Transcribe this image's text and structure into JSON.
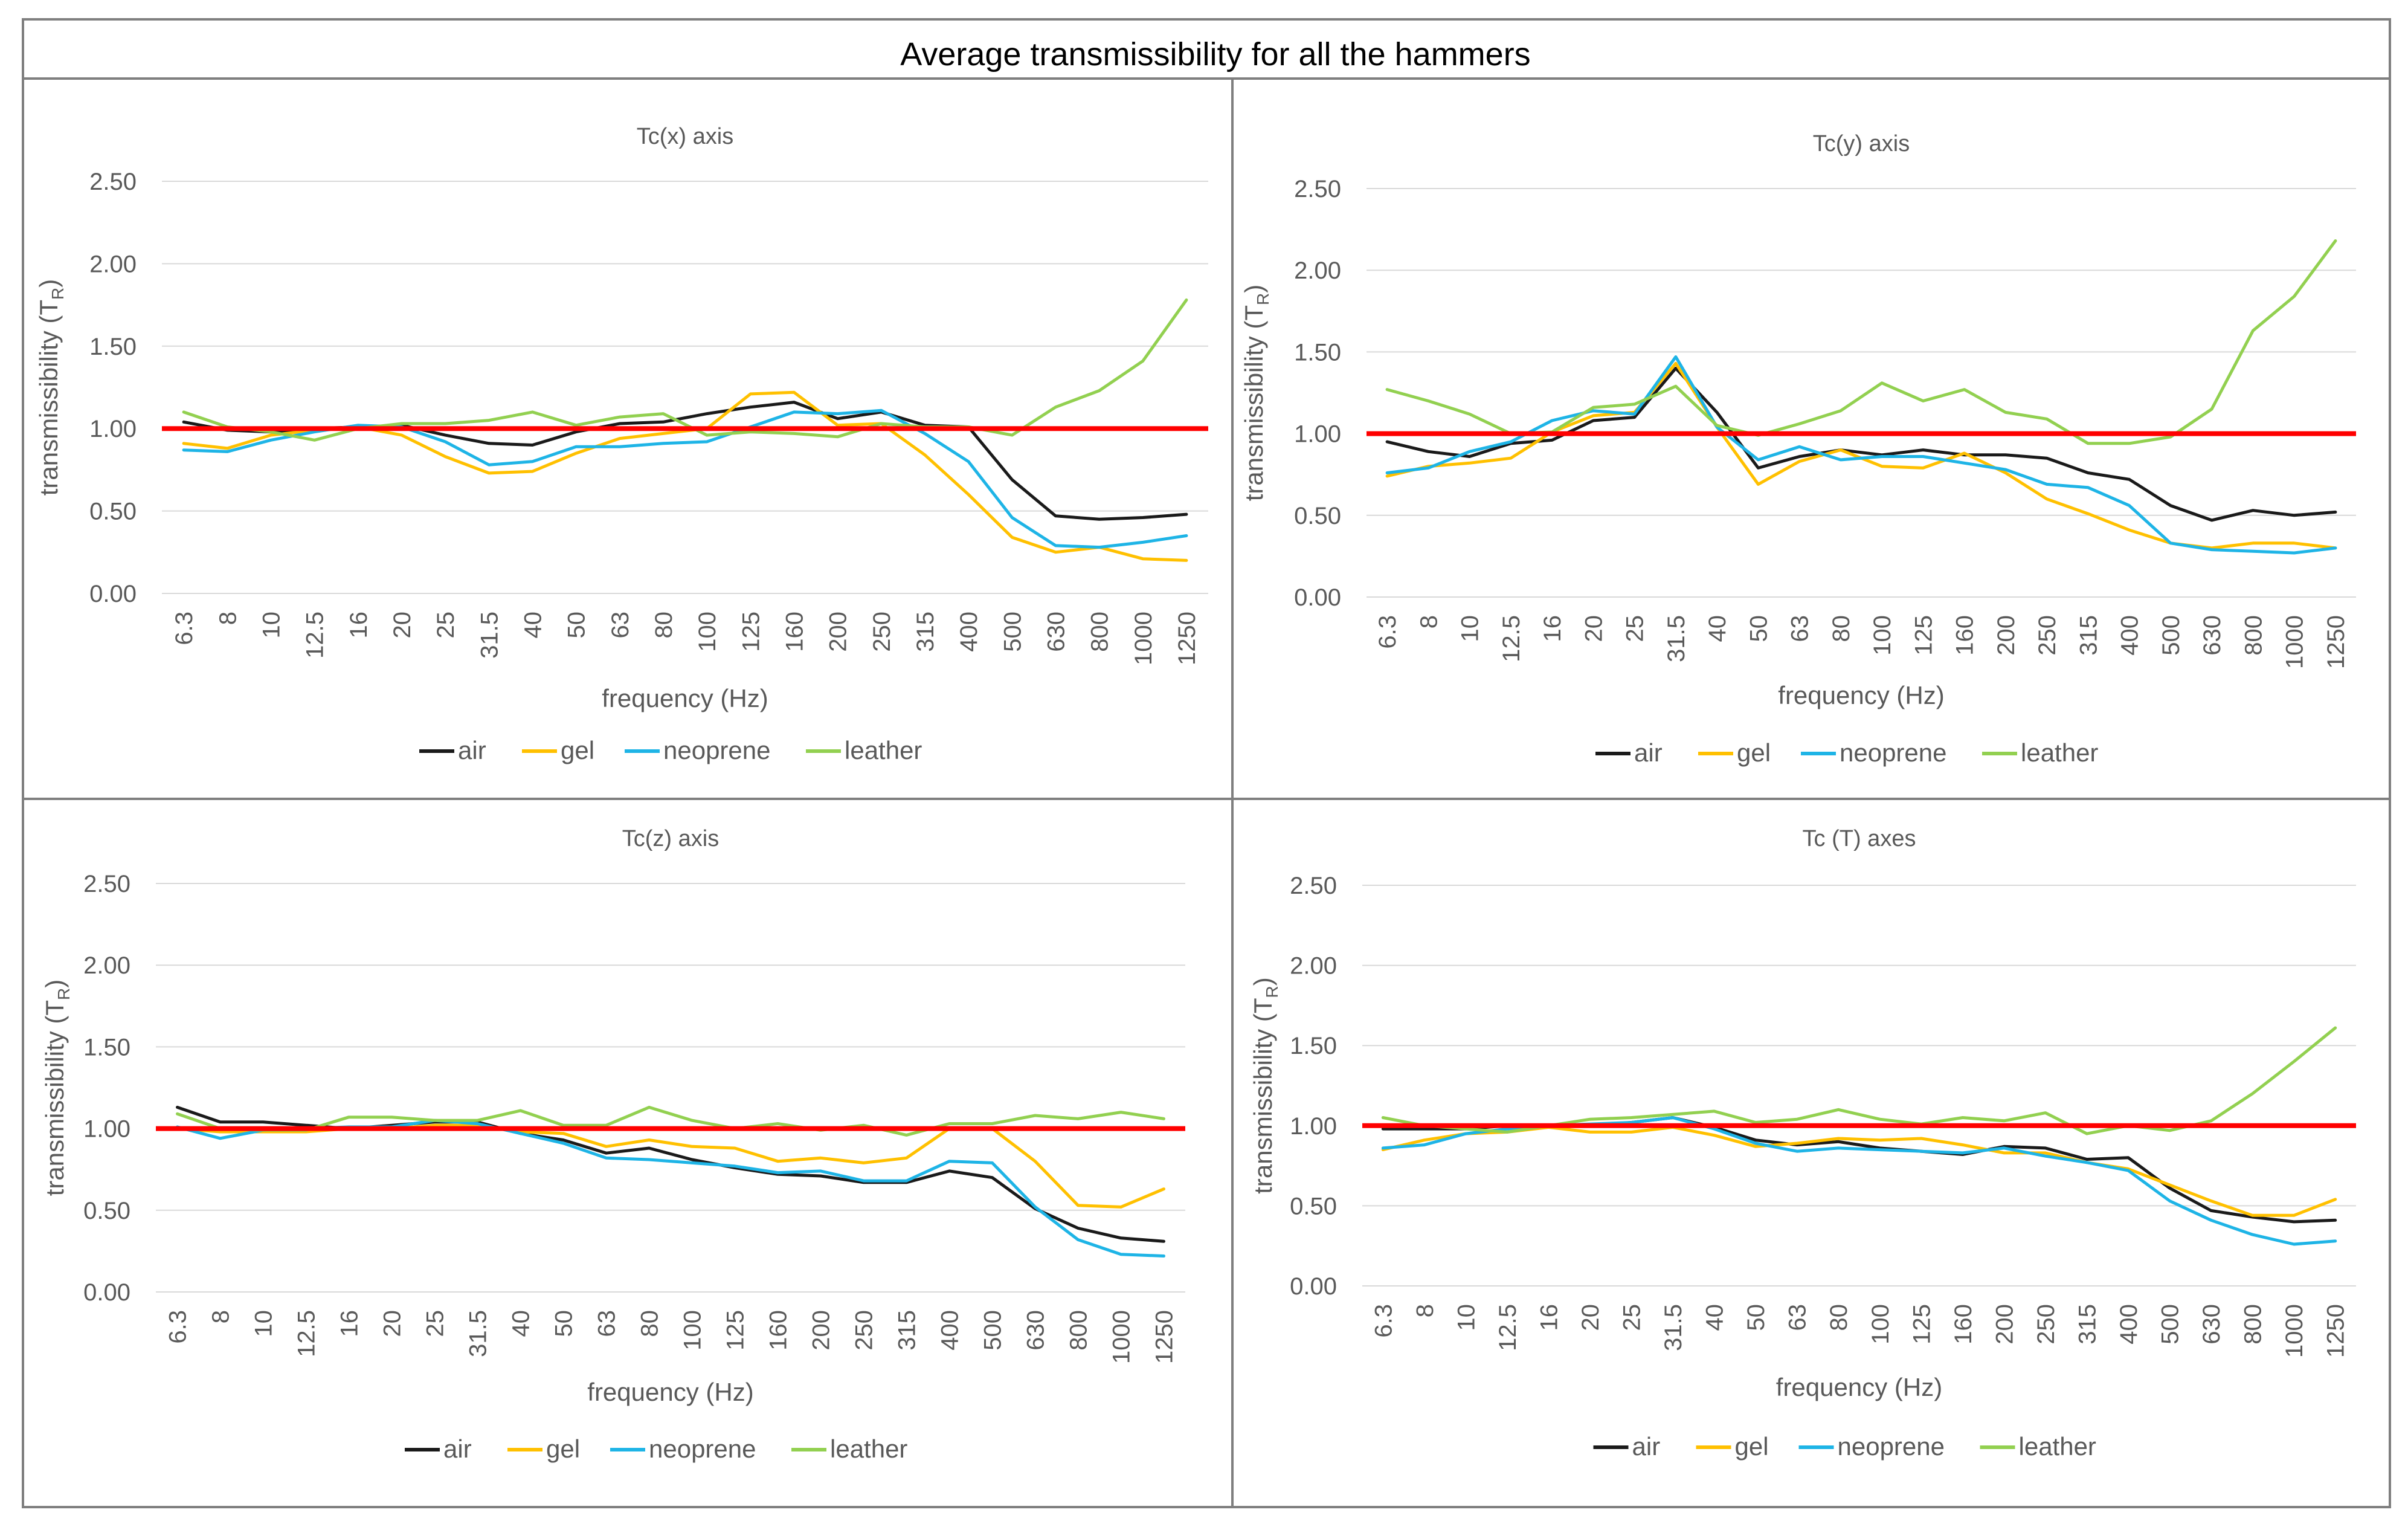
{
  "figure_title": "Average transmissibility for all the hammers",
  "colors": {
    "air": "#1a1a1a",
    "gel": "#FFC000",
    "neoprene": "#1EB4E6",
    "leather": "#92D050",
    "reference": "#FF0000",
    "grid": "#D9D9D9",
    "axis_text": "#595959",
    "border": "#7F7F7F"
  },
  "chart_data": [
    {
      "type": "line",
      "title": "Tc(x) axis",
      "xlabel": "frequency (Hz)",
      "ylabel_main": "transmissibility (T",
      "ylabel_sub": "R",
      "ylabel_end": ")",
      "ylim": [
        0,
        2.5
      ],
      "yticks": [
        "0.00",
        "0.50",
        "1.00",
        "1.50",
        "2.00",
        "2.50"
      ],
      "reference_line": 1.0,
      "categories": [
        "6.3",
        "8",
        "10",
        "12.5",
        "16",
        "20",
        "25",
        "31.5",
        "40",
        "50",
        "63",
        "80",
        "100",
        "125",
        "160",
        "200",
        "250",
        "315",
        "400",
        "500",
        "630",
        "800",
        "1000",
        "1250"
      ],
      "series": [
        {
          "name": "air",
          "values": [
            1.04,
            0.99,
            0.98,
            1.0,
            1.01,
            1.02,
            0.96,
            0.91,
            0.9,
            0.98,
            1.03,
            1.04,
            1.09,
            1.13,
            1.16,
            1.06,
            1.1,
            1.02,
            1.01,
            0.69,
            0.47,
            0.45,
            0.46,
            0.48
          ]
        },
        {
          "name": "gel",
          "values": [
            0.91,
            0.88,
            0.96,
            0.99,
            1.01,
            0.96,
            0.83,
            0.73,
            0.74,
            0.85,
            0.94,
            0.97,
            1.0,
            1.21,
            1.22,
            1.02,
            1.03,
            0.84,
            0.6,
            0.34,
            0.25,
            0.28,
            0.21,
            0.2
          ]
        },
        {
          "name": "neoprene",
          "values": [
            0.87,
            0.86,
            0.93,
            0.98,
            1.02,
            1.01,
            0.92,
            0.78,
            0.8,
            0.89,
            0.89,
            0.91,
            0.92,
            1.01,
            1.1,
            1.09,
            1.11,
            0.97,
            0.8,
            0.46,
            0.29,
            0.28,
            0.31,
            0.35
          ]
        },
        {
          "name": "leather",
          "values": [
            1.1,
            1.01,
            0.98,
            0.93,
            1.0,
            1.03,
            1.03,
            1.05,
            1.1,
            1.02,
            1.07,
            1.09,
            0.96,
            0.98,
            0.97,
            0.95,
            1.03,
            1.01,
            1.01,
            0.96,
            1.13,
            1.23,
            1.41,
            1.78
          ]
        }
      ],
      "legend": [
        "air",
        "gel",
        "neoprene",
        "leather"
      ]
    },
    {
      "type": "line",
      "title": "Tc(y) axis",
      "xlabel": "frequency (Hz)",
      "ylabel_main": "transmissibility (T",
      "ylabel_sub": "R",
      "ylabel_end": ")",
      "ylim": [
        0,
        2.5
      ],
      "yticks": [
        "0.00",
        "0.50",
        "1.00",
        "1.50",
        "2.00",
        "2.50"
      ],
      "reference_line": 1.0,
      "categories": [
        "6.3",
        "8",
        "10",
        "12.5",
        "16",
        "20",
        "25",
        "31.5",
        "40",
        "50",
        "63",
        "80",
        "100",
        "125",
        "160",
        "200",
        "250",
        "315",
        "400",
        "500",
        "630",
        "800",
        "1000",
        "1250"
      ],
      "series": [
        {
          "name": "air",
          "values": [
            0.95,
            0.89,
            0.86,
            0.94,
            0.96,
            1.08,
            1.1,
            1.4,
            1.13,
            0.79,
            0.86,
            0.9,
            0.87,
            0.9,
            0.87,
            0.87,
            0.85,
            0.76,
            0.72,
            0.56,
            0.47,
            0.53,
            0.5,
            0.52
          ]
        },
        {
          "name": "gel",
          "values": [
            0.74,
            0.8,
            0.82,
            0.85,
            1.01,
            1.11,
            1.13,
            1.43,
            1.04,
            0.69,
            0.83,
            0.9,
            0.8,
            0.79,
            0.88,
            0.76,
            0.6,
            0.51,
            0.41,
            0.33,
            0.3,
            0.33,
            0.33,
            0.3
          ]
        },
        {
          "name": "neoprene",
          "values": [
            0.76,
            0.79,
            0.89,
            0.95,
            1.08,
            1.14,
            1.12,
            1.47,
            1.04,
            0.84,
            0.92,
            0.84,
            0.86,
            0.86,
            0.82,
            0.78,
            0.69,
            0.67,
            0.56,
            0.33,
            0.29,
            0.28,
            0.27,
            0.3
          ]
        },
        {
          "name": "leather",
          "values": [
            1.27,
            1.2,
            1.12,
            1.0,
            1.01,
            1.16,
            1.18,
            1.29,
            1.05,
            0.99,
            1.06,
            1.14,
            1.31,
            1.2,
            1.27,
            1.13,
            1.09,
            0.94,
            0.94,
            0.98,
            1.15,
            1.63,
            1.84,
            2.18
          ]
        }
      ],
      "legend": [
        "air",
        "gel",
        "neoprene",
        "leather"
      ]
    },
    {
      "type": "line",
      "title": "Tc(z) axis",
      "xlabel": "frequency (Hz)",
      "ylabel_main": "transmissibility (T",
      "ylabel_sub": "R",
      "ylabel_end": ")",
      "ylim": [
        0,
        2.5
      ],
      "yticks": [
        "0.00",
        "0.50",
        "1.00",
        "1.50",
        "2.00",
        "2.50"
      ],
      "reference_line": 1.0,
      "categories": [
        "6.3",
        "8",
        "10",
        "12.5",
        "16",
        "20",
        "25",
        "31.5",
        "40",
        "50",
        "63",
        "80",
        "100",
        "125",
        "160",
        "200",
        "250",
        "315",
        "400",
        "500",
        "630",
        "800",
        "1000",
        "1250"
      ],
      "series": [
        {
          "name": "air",
          "values": [
            1.13,
            1.04,
            1.04,
            1.02,
            1.0,
            1.02,
            1.04,
            1.04,
            0.97,
            0.93,
            0.85,
            0.88,
            0.81,
            0.76,
            0.72,
            0.71,
            0.67,
            0.67,
            0.74,
            0.7,
            0.51,
            0.39,
            0.33,
            0.31
          ]
        },
        {
          "name": "gel",
          "values": [
            1.0,
            0.98,
            0.98,
            0.98,
            1.0,
            1.0,
            1.02,
            1.02,
            0.98,
            0.97,
            0.89,
            0.93,
            0.89,
            0.88,
            0.8,
            0.82,
            0.79,
            0.82,
            1.0,
            1.0,
            0.8,
            0.53,
            0.52,
            0.63
          ]
        },
        {
          "name": "neoprene",
          "values": [
            1.01,
            0.94,
            0.99,
            1.0,
            1.01,
            1.01,
            1.05,
            1.03,
            0.97,
            0.91,
            0.82,
            0.81,
            0.79,
            0.77,
            0.73,
            0.74,
            0.68,
            0.68,
            0.8,
            0.79,
            0.52,
            0.32,
            0.23,
            0.22
          ]
        },
        {
          "name": "leather",
          "values": [
            1.09,
            1.0,
            0.99,
            0.99,
            1.07,
            1.07,
            1.05,
            1.05,
            1.11,
            1.02,
            1.02,
            1.13,
            1.05,
            1.0,
            1.03,
            0.99,
            1.02,
            0.96,
            1.03,
            1.03,
            1.08,
            1.06,
            1.1,
            1.06
          ]
        }
      ],
      "legend": [
        "air",
        "gel",
        "neoprene",
        "leather"
      ]
    },
    {
      "type": "line",
      "title": "Tc (T) axes",
      "xlabel": "frequency (Hz)",
      "ylabel_main": "transmissibility (T",
      "ylabel_sub": "R",
      "ylabel_end": ")",
      "ylim": [
        0,
        2.5
      ],
      "yticks": [
        "0.00",
        "0.50",
        "1.00",
        "1.50",
        "2.00",
        "2.50"
      ],
      "reference_line": 1.0,
      "categories": [
        "6.3",
        "8",
        "10",
        "12.5",
        "16",
        "20",
        "25",
        "31.5",
        "40",
        "50",
        "63",
        "80",
        "100",
        "125",
        "160",
        "200",
        "250",
        "315",
        "400",
        "500",
        "630",
        "800",
        "1000",
        "1250"
      ],
      "series": [
        {
          "name": "air",
          "values": [
            0.98,
            0.98,
            0.98,
            1.0,
            0.99,
            1.0,
            1.02,
            1.05,
            0.99,
            0.91,
            0.88,
            0.9,
            0.86,
            0.84,
            0.82,
            0.87,
            0.86,
            0.79,
            0.8,
            0.61,
            0.47,
            0.43,
            0.4,
            0.41
          ]
        },
        {
          "name": "gel",
          "values": [
            0.85,
            0.91,
            0.95,
            0.96,
            0.99,
            0.96,
            0.96,
            0.99,
            0.94,
            0.87,
            0.89,
            0.92,
            0.91,
            0.92,
            0.88,
            0.83,
            0.83,
            0.77,
            0.73,
            0.63,
            0.53,
            0.44,
            0.44,
            0.54
          ]
        },
        {
          "name": "neoprene",
          "values": [
            0.86,
            0.88,
            0.95,
            0.98,
            1.0,
            1.01,
            1.02,
            1.05,
            0.98,
            0.89,
            0.84,
            0.86,
            0.85,
            0.84,
            0.83,
            0.86,
            0.81,
            0.77,
            0.72,
            0.53,
            0.41,
            0.32,
            0.26,
            0.28
          ]
        },
        {
          "name": "leather",
          "values": [
            1.05,
            1.0,
            0.98,
            0.96,
            1.0,
            1.04,
            1.05,
            1.07,
            1.09,
            1.02,
            1.04,
            1.1,
            1.04,
            1.01,
            1.05,
            1.03,
            1.08,
            0.95,
            1.0,
            0.97,
            1.03,
            1.2,
            1.4,
            1.61
          ]
        }
      ],
      "legend": [
        "air",
        "gel",
        "neoprene",
        "leather"
      ]
    }
  ]
}
